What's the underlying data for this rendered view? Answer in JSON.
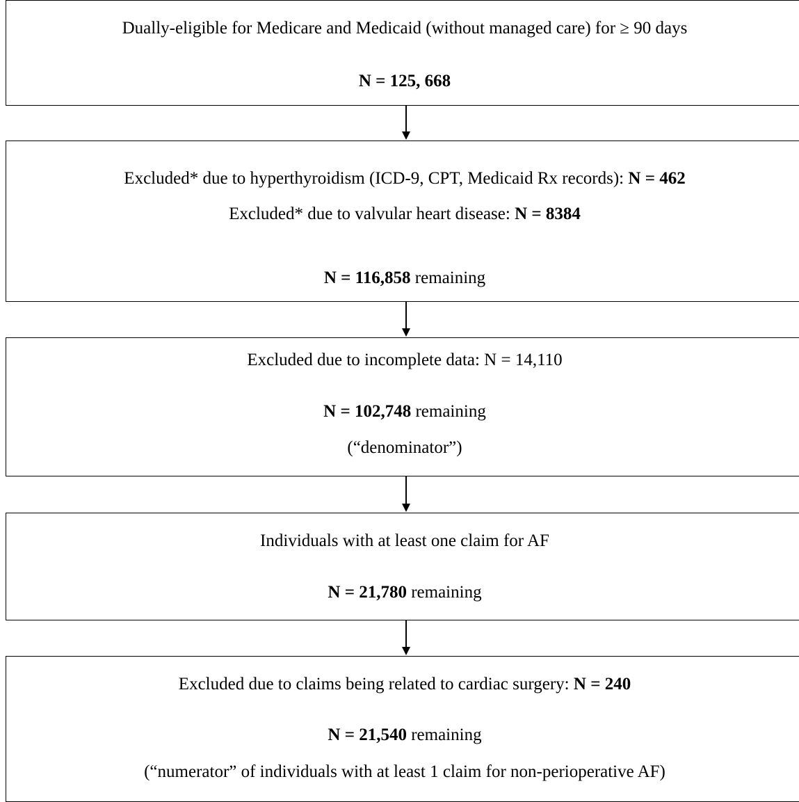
{
  "boxes": [
    {
      "line1": "Dually-eligible for Medicare and Medicaid (without managed care) for ≥ 90 days",
      "count": "N = 125, 668"
    },
    {
      "line1_text": "Excluded* due  to hyperthyroidism (ICD-9, CPT, Medicaid Rx records): ",
      "line1_count": "N = 462",
      "line2_text": "Excluded* due to valvular heart disease: ",
      "line2_count": "N = 8384",
      "remaining_count": "N = 116,858",
      "remaining_text": " remaining"
    },
    {
      "line1": "Excluded due to incomplete data: N = 14,110",
      "remaining_count": "N = 102,748",
      "remaining_text": " remaining",
      "note": "(“denominator”)"
    },
    {
      "line1": "Individuals with at least one claim for AF",
      "remaining_count": "N = 21,780",
      "remaining_text": " remaining"
    },
    {
      "line1_text": "Excluded due to claims being related to cardiac surgery: ",
      "line1_count": "N = 240",
      "remaining_count": "N = 21,540",
      "remaining_text": " remaining",
      "note": "(“numerator” of individuals with at least 1 claim for non-perioperative AF)"
    }
  ]
}
